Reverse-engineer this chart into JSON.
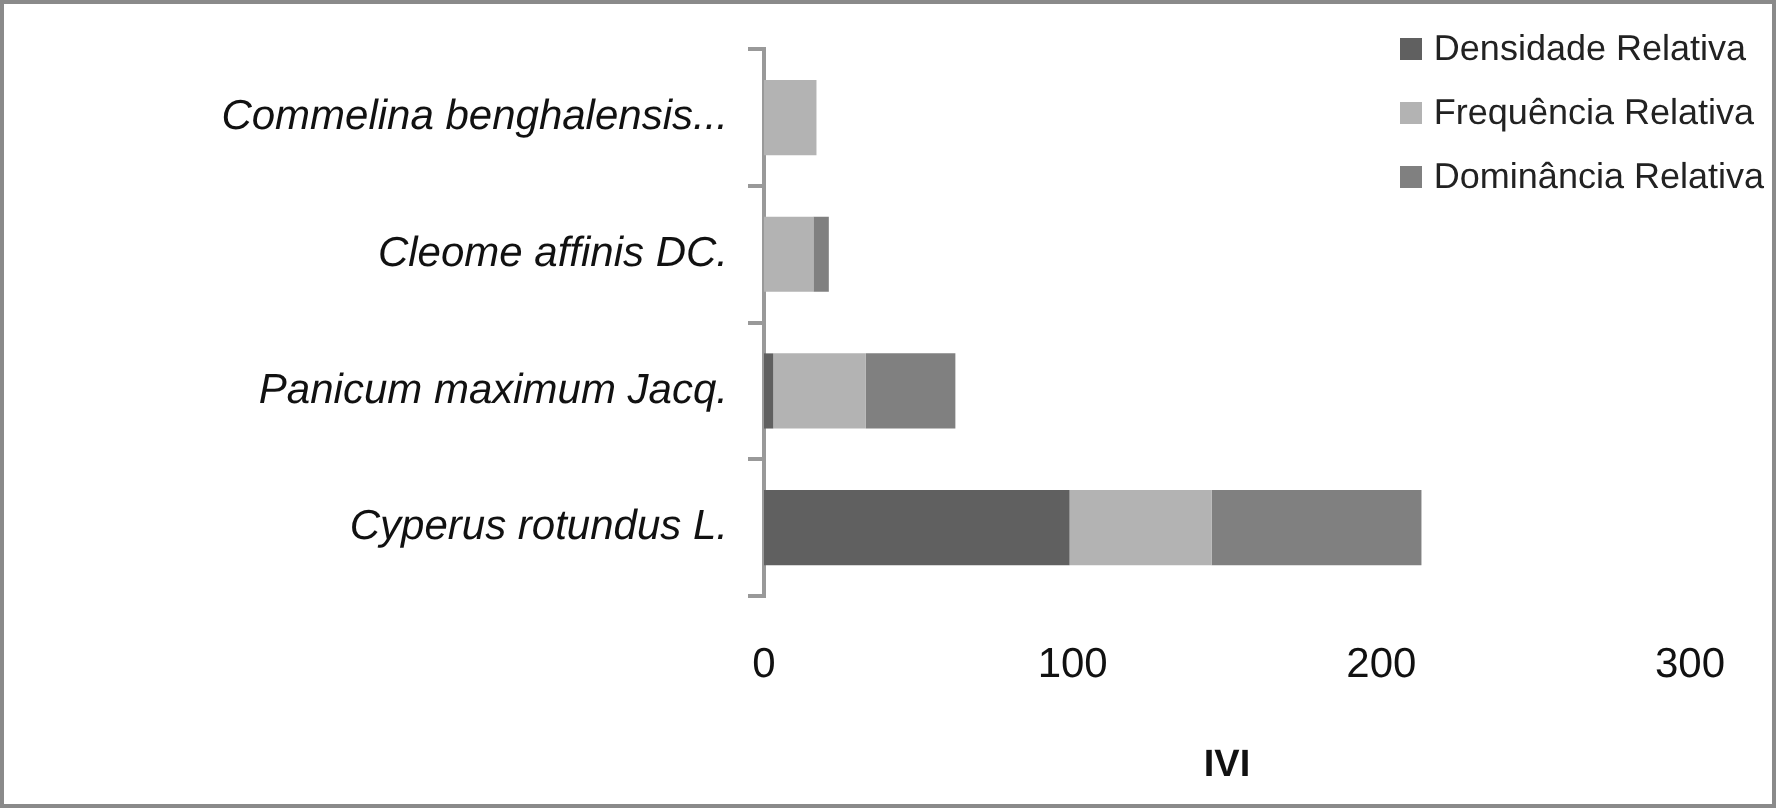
{
  "chart_data": {
    "type": "bar",
    "orientation": "horizontal",
    "stacked": true,
    "xlabel": "IVI",
    "categories": [
      "Commelina benghalensis...",
      "Cleome affinis DC.",
      "Panicum maximum Jacq.",
      "Cyperus rotundus L."
    ],
    "series": [
      {
        "name": "Densidade Relativa",
        "color": "#606060",
        "values": [
          0,
          0,
          3,
          99
        ]
      },
      {
        "name": "Frequência Relativa",
        "color": "#b3b3b3",
        "values": [
          17,
          16,
          30,
          46
        ]
      },
      {
        "name": "Dominância Relativa",
        "color": "#808080",
        "values": [
          0,
          5,
          29,
          68
        ]
      }
    ],
    "xlim": [
      0,
      300
    ],
    "xticks": [
      0,
      100,
      200,
      300
    ],
    "grid": false,
    "legend": "top right"
  }
}
